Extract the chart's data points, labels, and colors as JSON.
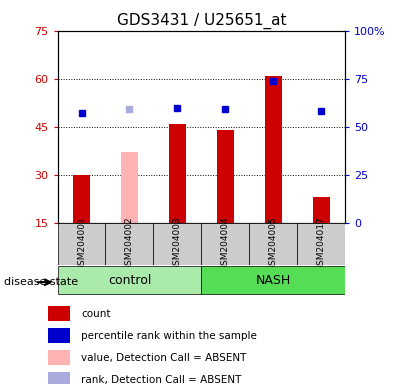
{
  "title": "GDS3431 / U25651_at",
  "samples": [
    "GSM204001",
    "GSM204002",
    "GSM204003",
    "GSM204004",
    "GSM204005",
    "GSM204017"
  ],
  "groups": [
    "control",
    "control",
    "control",
    "NASH",
    "NASH",
    "NASH"
  ],
  "count_values": [
    30,
    null,
    46,
    44,
    61,
    23
  ],
  "count_absent": [
    null,
    37,
    null,
    null,
    null,
    null
  ],
  "percentile_values": [
    57,
    null,
    60,
    59,
    74,
    58
  ],
  "percentile_absent": [
    null,
    59,
    null,
    null,
    null,
    null
  ],
  "ylim_left": [
    15,
    75
  ],
  "ylim_right": [
    0,
    100
  ],
  "yticks_left": [
    15,
    30,
    45,
    60,
    75
  ],
  "yticks_right": [
    0,
    25,
    50,
    75,
    100
  ],
  "ytick_labels_left": [
    "15",
    "30",
    "45",
    "60",
    "75"
  ],
  "ytick_labels_right": [
    "0",
    "25",
    "50",
    "75",
    "100%"
  ],
  "color_count": "#cc0000",
  "color_count_absent": "#ffb3b3",
  "color_percentile": "#0000cc",
  "color_percentile_absent": "#aaaadd",
  "bar_width": 0.35,
  "group_spans": [
    {
      "label": "control",
      "start": 0,
      "end": 2,
      "color": "#aaeaaa"
    },
    {
      "label": "NASH",
      "start": 3,
      "end": 5,
      "color": "#55dd55"
    }
  ],
  "legend_items": [
    {
      "label": "count",
      "color": "#cc0000"
    },
    {
      "label": "percentile rank within the sample",
      "color": "#0000cc"
    },
    {
      "label": "value, Detection Call = ABSENT",
      "color": "#ffb3b3"
    },
    {
      "label": "rank, Detection Call = ABSENT",
      "color": "#aaaadd"
    }
  ],
  "disease_state_label": "disease state",
  "title_fontsize": 11
}
